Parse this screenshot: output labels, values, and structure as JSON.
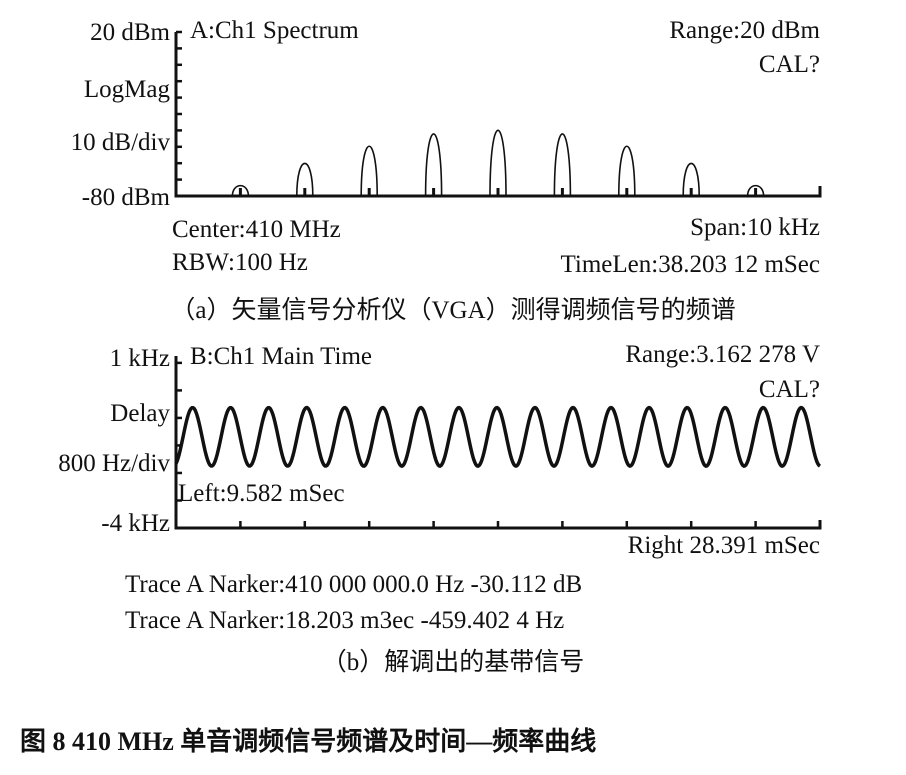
{
  "chart_data": [
    {
      "type": "line",
      "title": "A:Ch1 Spectrum",
      "ylabel_top": "20 dBm",
      "ylabel_scale": "LogMag",
      "ylabel_div": "10 dB/div",
      "ylabel_bottom": "-80 dBm",
      "range_label": "Range:20 dBm",
      "cal_label": "CAL?",
      "center_label": "Center:410 MHz",
      "span_label": "Span:10 kHz",
      "rbw_label": "RBW:100 Hz",
      "timelen_label": "TimeLen:38.203 12 mSec",
      "ylim": [
        -80,
        20
      ],
      "xlim_khz_offset": [
        -5,
        5
      ],
      "grid": false,
      "peaks": {
        "x_khz_offset": [
          -4,
          -3,
          -2,
          -1,
          0,
          1,
          2,
          3,
          4
        ],
        "y_dbm": [
          -74,
          -56,
          -42,
          -32,
          -29,
          -32,
          -42,
          -56,
          -74
        ]
      },
      "caption": "（a）矢量信号分析仪（VGA）测得调频信号的频谱"
    },
    {
      "type": "line",
      "title": "B:Ch1 Main Time",
      "ylabel_top": "1 kHz",
      "ylabel_scale": "Delay",
      "ylabel_div": "800 Hz/div",
      "ylabel_bottom": "-4 kHz",
      "range_label": "Range:3.162 278 V",
      "cal_label": "CAL?",
      "left_label": "Left:9.582 mSec",
      "right_label": "Right 28.391 mSec",
      "xlim_ms": [
        9.582,
        28.391
      ],
      "ylim_khz": [
        -4,
        1
      ],
      "grid": false,
      "waveform": {
        "shape": "sine",
        "tone_hz": 900,
        "center_khz": -1.35,
        "amplitude_khz": 0.85
      },
      "caption": "（b）解调出的基带信号"
    }
  ],
  "markers": [
    "Trace A Narker:410 000 000.0 Hz -30.112 dB",
    "Trace A Narker:18.203 m3ec -459.402 4 Hz"
  ],
  "figure_caption": "图 8   410 MHz 单音调频信号频谱及时间—频率曲线"
}
